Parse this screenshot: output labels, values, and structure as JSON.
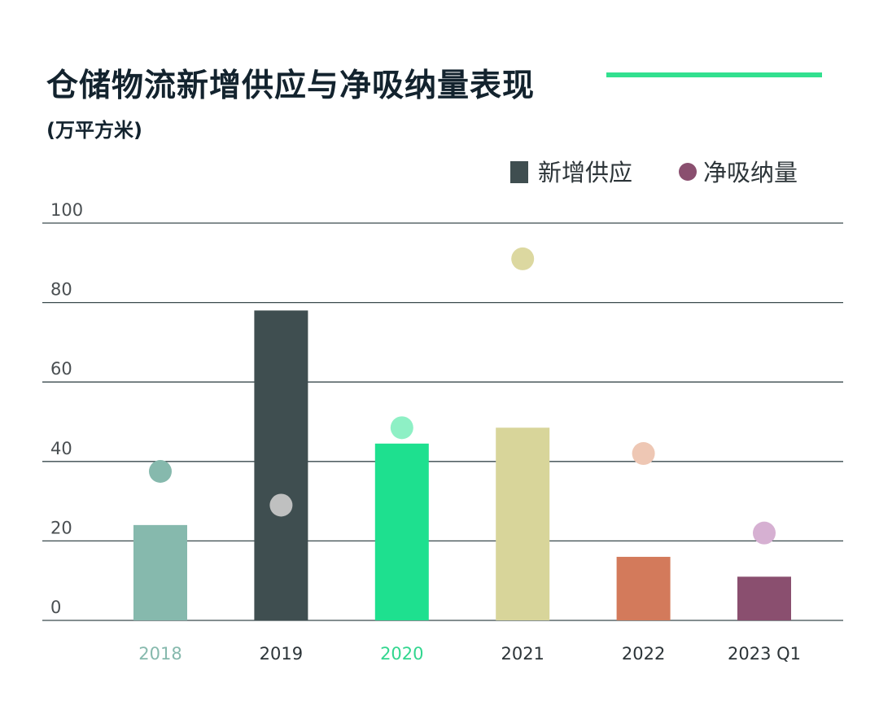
{
  "header": {
    "title": "仓储物流新增供应与净吸纳量表现",
    "unit": "(万平方米)"
  },
  "legend": {
    "bar_label": "新增供应",
    "dot_label": "净吸纳量",
    "bar_color": "#3f4e50",
    "dot_color": "#8a4f6f"
  },
  "colors": {
    "title": "#13232e",
    "accent_rule": "#32e08f",
    "gridline": "#3a4a4d"
  },
  "chart_data": {
    "type": "bar",
    "title": "仓储物流新增供应与净吸纳量表现",
    "ylabel": "(万平方米)",
    "xlabel": "",
    "ylim": [
      0,
      100
    ],
    "yticks": [
      0,
      20,
      40,
      60,
      80,
      100
    ],
    "grid": true,
    "legend_position": "top-right",
    "categories": [
      "2018",
      "2019",
      "2020",
      "2021",
      "2022",
      "2023 Q1"
    ],
    "series": [
      {
        "name": "新增供应",
        "kind": "bar",
        "values": [
          24,
          78,
          44.5,
          48.5,
          16,
          11
        ],
        "colors": [
          "#86b9ad",
          "#3f4e50",
          "#1ee08f",
          "#d8d59a",
          "#d37a5b",
          "#8a4f6f"
        ]
      },
      {
        "name": "净吸纳量",
        "kind": "dot",
        "values": [
          37.5,
          29,
          48.5,
          91,
          42,
          22
        ],
        "colors": [
          "#86b9ad",
          "#bfc0c0",
          "#8ef0c5",
          "#dcd8a0",
          "#eec7b4",
          "#d6b0d2"
        ]
      }
    ],
    "category_label_colors": [
      "#86b9ad",
      "#2c3438",
      "#32d68f",
      "#2c3438",
      "#2c3438",
      "#2c3438"
    ]
  }
}
